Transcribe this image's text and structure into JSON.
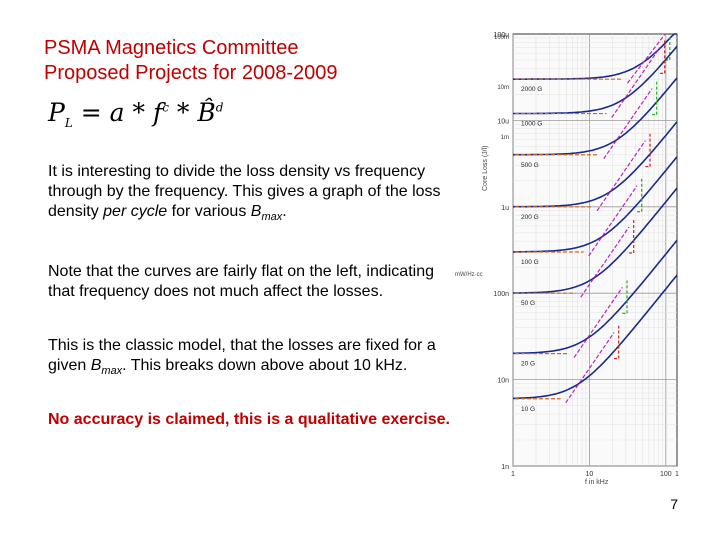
{
  "slide": {
    "title_line1": "PSMA Magnetics Committee",
    "title_line2": "Proposed Projects for 2008-2009",
    "formula": {
      "p": "P",
      "p_sub": "L",
      "eq": " = a * ",
      "f": "f",
      "c": "c",
      "mid": " * ",
      "b": "B̂",
      "d": "d"
    },
    "para1": {
      "t1": "It is interesting to divide the loss density vs frequency through by the frequency.  This gives a graph of the loss density ",
      "em": "per cycle",
      "t2": " for various ",
      "b": "B",
      "sub": "max",
      "t3": "."
    },
    "para2": "Note that the curves are fairly flat on the left, indicating that frequency does not much affect the losses.",
    "para3": {
      "t1": "This is the classic model, that the losses are fixed for a given ",
      "b": "B",
      "sub": "max",
      "t2": ".  This breaks down above about 10 kHz."
    },
    "warning": "No accuracy is claimed, this is a qualitative exercise.",
    "page_number": "7"
  },
  "chart_data": {
    "type": "line",
    "xlabel": "f in kHz",
    "ylabel": "Core Loss (J/l)",
    "y_unit_label": "mW/Hz·cc",
    "x_scale": "log",
    "y_scale": "log",
    "xlim": [
      1,
      140
    ],
    "ylim": [
      1e-09,
      0.0001
    ],
    "x_ticks": [
      1,
      10,
      100
    ],
    "x_tick_labels": [
      "1",
      "10",
      "100"
    ],
    "x_end_label": "1",
    "y_ticks": [
      1e-09,
      1e-08,
      1e-07,
      1e-06,
      1e-05,
      0.0001
    ],
    "y_tick_labels": [
      "1n",
      "10n",
      "100n",
      "1u",
      "10u",
      "100u"
    ],
    "y_top_labels": [
      "100m",
      "10m",
      "1m"
    ],
    "series_labels": [
      "2000 G",
      "1000 G",
      "500 G",
      "200 G",
      "100 G",
      "50 G",
      "20 G",
      "10 G"
    ],
    "curves": [
      {
        "name": "2000 G",
        "start": 3e-05,
        "knee_khz": 45
      },
      {
        "name": "1000 G",
        "start": 1.2e-05,
        "knee_khz": 28
      },
      {
        "name": "500 G",
        "start": 4e-06,
        "knee_khz": 22
      },
      {
        "name": "200 G",
        "start": 1e-06,
        "knee_khz": 18
      },
      {
        "name": "100 G",
        "start": 3e-07,
        "knee_khz": 14
      },
      {
        "name": "50 G",
        "start": 1e-07,
        "knee_khz": 11
      },
      {
        "name": "20 G",
        "start": 2e-08,
        "knee_khz": 9
      },
      {
        "name": "10 G",
        "start": 6e-09,
        "knee_khz": 7
      }
    ],
    "colors": {
      "curve": "#1a2a8a",
      "fit_orange": "#d2691e",
      "fit_magenta": "#c020c0",
      "fit_green": "#20b020",
      "fit_red": "#d02020"
    }
  }
}
